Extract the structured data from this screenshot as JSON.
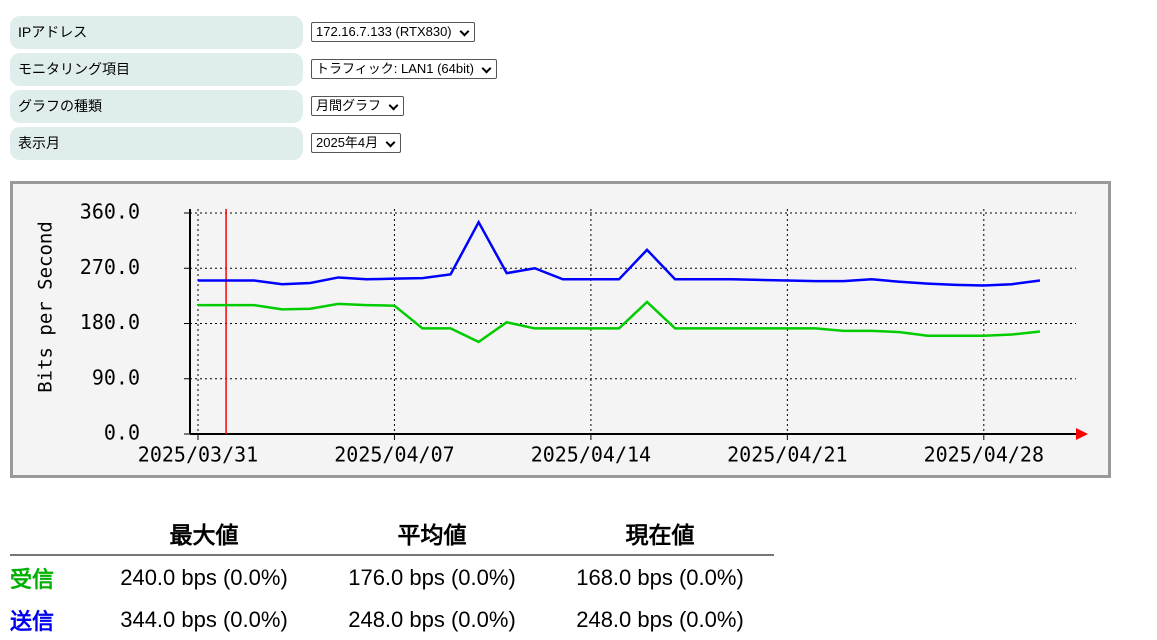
{
  "form": {
    "rows": [
      {
        "label": "IPアドレス",
        "value": "172.16.7.133 (RTX830)"
      },
      {
        "label": "モニタリング項目",
        "value": "トラフィック: LAN1 (64bit)"
      },
      {
        "label": "グラフの種類",
        "value": "月間グラフ"
      },
      {
        "label": "表示月",
        "value": "2025年4月"
      }
    ]
  },
  "chart_data": {
    "type": "line",
    "y_label": "Bits per Second",
    "x": [
      "2025/03/31",
      "2025/04/01",
      "2025/04/02",
      "2025/04/03",
      "2025/04/04",
      "2025/04/05",
      "2025/04/06",
      "2025/04/07",
      "2025/04/08",
      "2025/04/09",
      "2025/04/10",
      "2025/04/11",
      "2025/04/12",
      "2025/04/13",
      "2025/04/14",
      "2025/04/15",
      "2025/04/16",
      "2025/04/17",
      "2025/04/18",
      "2025/04/19",
      "2025/04/20",
      "2025/04/21",
      "2025/04/22",
      "2025/04/23",
      "2025/04/24",
      "2025/04/25",
      "2025/04/26",
      "2025/04/27",
      "2025/04/28",
      "2025/04/29",
      "2025/04/30"
    ],
    "xlim": [
      "2025/03/31",
      "2025/05/01"
    ],
    "xticks": [
      "2025/03/31",
      "2025/04/07",
      "2025/04/14",
      "2025/04/21",
      "2025/04/28"
    ],
    "ylim": [
      0,
      360
    ],
    "yticks": [
      {
        "value": 0,
        "label": "0.0"
      },
      {
        "value": 90,
        "label": "90.0"
      },
      {
        "value": 180,
        "label": "180.0"
      },
      {
        "value": 270,
        "label": "270.0"
      },
      {
        "value": 360,
        "label": "360.0"
      }
    ],
    "grid": true,
    "series": [
      {
        "color": "#0000ff",
        "values": [
          250,
          250,
          250,
          244,
          246,
          255,
          252,
          253,
          254,
          260,
          345,
          262,
          270,
          252,
          252,
          252,
          300,
          252,
          252,
          252,
          251,
          250,
          249,
          249,
          252,
          248,
          245,
          243,
          242,
          244,
          250
        ]
      },
      {
        "color": "#00cc00",
        "values": [
          210,
          210,
          210,
          203,
          204,
          212,
          210,
          209,
          172,
          172,
          150,
          182,
          172,
          172,
          172,
          172,
          215,
          172,
          172,
          172,
          172,
          172,
          172,
          168,
          168,
          166,
          160,
          160,
          160,
          162,
          167
        ]
      }
    ],
    "markers": [
      {
        "x": "2025/04/01",
        "color": "#ff0000"
      }
    ]
  },
  "stats": {
    "headers": [
      "最大値",
      "平均値",
      "現在値"
    ],
    "rows": [
      {
        "label": "受信",
        "color": "#00b000",
        "cells": [
          "240.0 bps (0.0%)",
          "176.0 bps (0.0%)",
          "168.0 bps (0.0%)"
        ]
      },
      {
        "label": "送信",
        "color": "#0000ee",
        "cells": [
          "344.0 bps (0.0%)",
          "248.0 bps (0.0%)",
          "248.0 bps (0.0%)"
        ]
      }
    ]
  }
}
